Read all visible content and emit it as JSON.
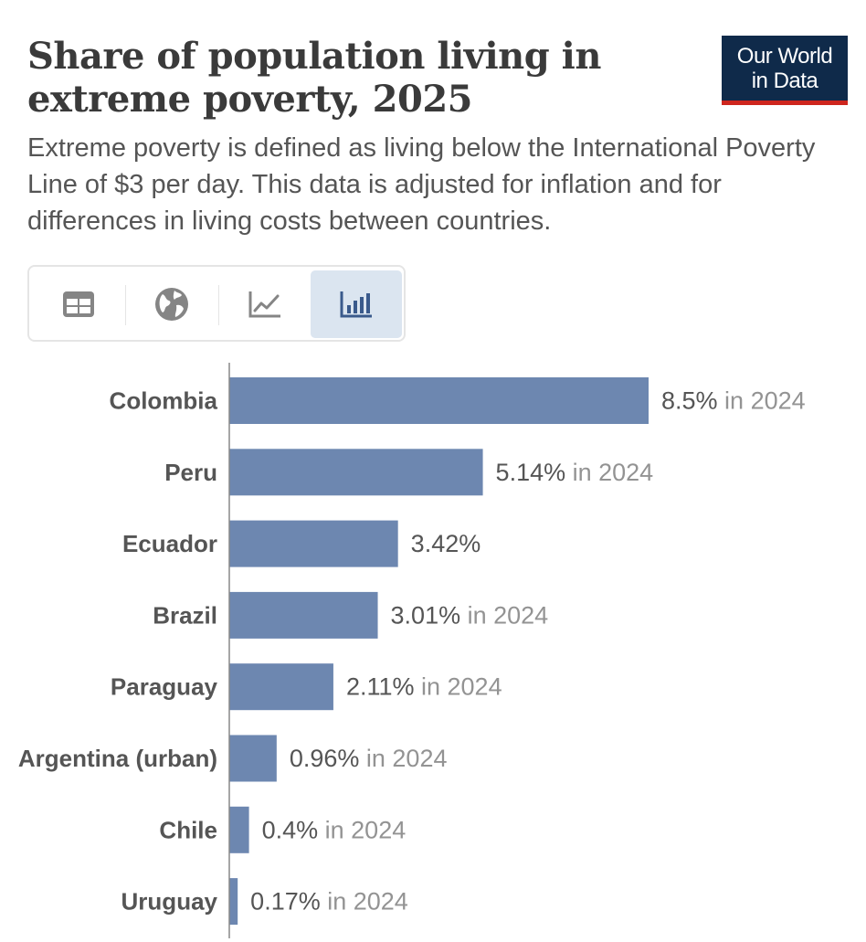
{
  "header": {
    "title": "Share of population living in extreme poverty, 2025",
    "subtitle": "Extreme poverty is defined as living below the International Poverty Line of $3 per day. This data is adjusted for inflation and for differences in living costs between countries.",
    "logo_line1": "Our World",
    "logo_line2": "in Data"
  },
  "tabs": [
    {
      "icon": "table-icon",
      "active": false
    },
    {
      "icon": "globe-icon",
      "active": false
    },
    {
      "icon": "line-chart-icon",
      "active": false
    },
    {
      "icon": "bar-chart-icon",
      "active": true
    }
  ],
  "colors": {
    "bar": "#6d87b0",
    "label": "#555555",
    "value": "#555555",
    "year": "#939393",
    "axis": "#888888",
    "logo_bg": "#0f2a4a",
    "logo_accent": "#ce261e",
    "active_tab": "#dbe5f0"
  },
  "chart_data": {
    "type": "bar",
    "orientation": "horizontal",
    "unit": "%",
    "xlim": [
      0,
      8.5
    ],
    "categories": [
      "Colombia",
      "Peru",
      "Ecuador",
      "Brazil",
      "Paraguay",
      "Argentina (urban)",
      "Chile",
      "Uruguay"
    ],
    "values": [
      8.5,
      5.14,
      3.42,
      3.01,
      2.11,
      0.96,
      0.4,
      0.17
    ],
    "value_labels": [
      "8.5%",
      "5.14%",
      "3.42%",
      "3.01%",
      "2.11%",
      "0.96%",
      "0.4%",
      "0.17%"
    ],
    "year_notes": [
      "in 2024",
      "in 2024",
      "",
      "in 2024",
      "in 2024",
      "in 2024",
      "in 2024",
      "in 2024"
    ]
  }
}
